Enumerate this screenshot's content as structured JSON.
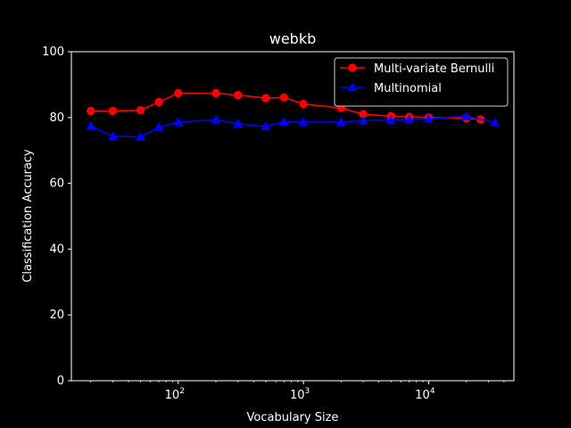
{
  "chart_data": {
    "type": "line",
    "title": "webkb",
    "xlabel": "Vocabulary Size",
    "ylabel": "Classification Accuracy",
    "xscale": "log",
    "xlim": [
      14,
      48000
    ],
    "ylim": [
      0,
      100
    ],
    "yticks": [
      0,
      20,
      40,
      60,
      80,
      100
    ],
    "xticks": [
      {
        "base": "10",
        "exp": "2",
        "value": 100
      },
      {
        "base": "10",
        "exp": "3",
        "value": 1000
      },
      {
        "base": "10",
        "exp": "4",
        "value": 10000
      }
    ],
    "grid": false,
    "legend_position": "top-right",
    "series": [
      {
        "name": "Multi-variate Bernulli",
        "color": "#ff0000",
        "marker": "circle",
        "x": [
          20,
          30,
          50,
          70,
          100,
          200,
          300,
          500,
          700,
          1000,
          2000,
          3000,
          5000,
          7000,
          10000,
          20000,
          26000
        ],
        "y": [
          82.0,
          82.0,
          82.2,
          84.7,
          87.4,
          87.4,
          86.8,
          85.9,
          86.1,
          84.1,
          82.9,
          81.0,
          80.4,
          80.2,
          80.0,
          79.8,
          79.4
        ]
      },
      {
        "name": "Multinomial",
        "color": "#0000ff",
        "marker": "triangle",
        "x": [
          20,
          30,
          50,
          70,
          100,
          200,
          300,
          500,
          700,
          1000,
          2000,
          3000,
          5000,
          7000,
          10000,
          20000,
          34000
        ],
        "y": [
          77.4,
          74.3,
          74.1,
          77.1,
          78.6,
          79.3,
          78.1,
          77.3,
          78.7,
          78.6,
          78.6,
          79.0,
          79.2,
          79.4,
          79.6,
          80.4,
          78.5
        ]
      }
    ]
  }
}
